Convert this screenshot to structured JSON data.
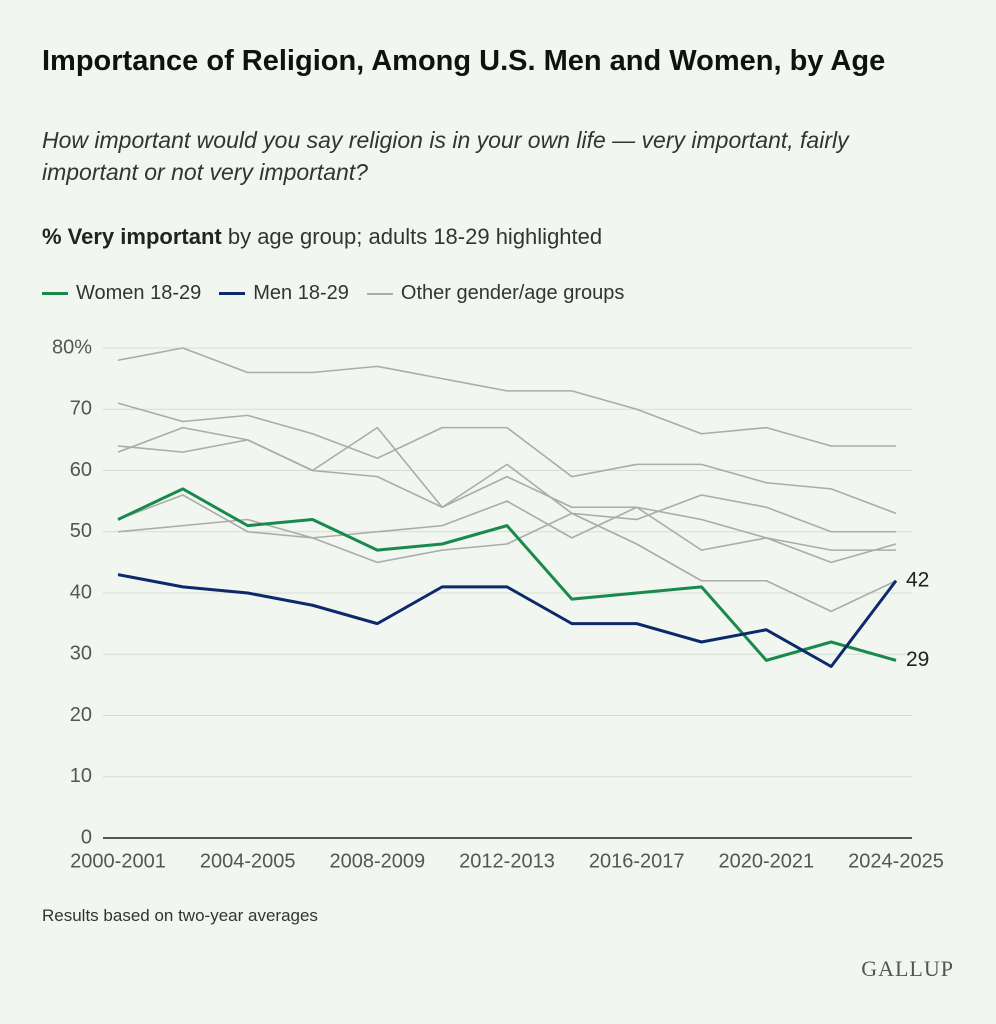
{
  "chart_data": {
    "type": "line",
    "title": "Importance of Religion, Among U.S. Men and Women, by Age",
    "subtitle": "How important would you say religion is in your own life — very important, fairly important or not very important?",
    "measure_bold": "% Very important",
    "measure_rest": "by age group; adults 18-29 highlighted",
    "categories": [
      "2000-2001",
      null,
      "2004-2005",
      null,
      "2008-2009",
      null,
      "2012-2013",
      null,
      "2016-2017",
      null,
      "2020-2021",
      null,
      "2024-2025"
    ],
    "series": [
      {
        "name": "Women 18-29",
        "color": "#1a8a4c",
        "values": [
          52,
          57,
          51,
          52,
          47,
          48,
          51,
          39,
          40,
          41,
          29,
          32,
          29
        ]
      },
      {
        "name": "Men 18-29",
        "color": "#0c2a6a",
        "values": [
          43,
          41,
          40,
          38,
          35,
          41,
          41,
          35,
          35,
          32,
          34,
          28,
          42
        ]
      }
    ],
    "other_groups": {
      "name": "Other gender/age groups",
      "color": "#a9aca9",
      "values": [
        [
          78,
          80,
          76,
          76,
          77,
          75,
          73,
          73,
          70,
          66,
          67,
          64,
          64
        ],
        [
          71,
          68,
          69,
          66,
          62,
          67,
          67,
          59,
          61,
          61,
          58,
          57,
          53
        ],
        [
          64,
          63,
          65,
          60,
          67,
          54,
          61,
          53,
          52,
          56,
          54,
          50,
          50
        ],
        [
          63,
          67,
          65,
          60,
          59,
          54,
          59,
          54,
          54,
          52,
          49,
          47,
          47
        ],
        [
          52,
          56,
          50,
          49,
          45,
          47,
          48,
          53,
          48,
          42,
          42,
          37,
          42
        ],
        [
          50,
          51,
          52,
          49,
          50,
          51,
          55,
          49,
          54,
          47,
          49,
          45,
          48
        ]
      ]
    },
    "ylim": [
      0,
      80
    ],
    "yticks": [
      0,
      10,
      20,
      30,
      40,
      50,
      60,
      70,
      {
        "value": 80,
        "label": "80%"
      }
    ],
    "grid": true,
    "note": "Results based on two-year averages",
    "source": "GALLUP"
  }
}
